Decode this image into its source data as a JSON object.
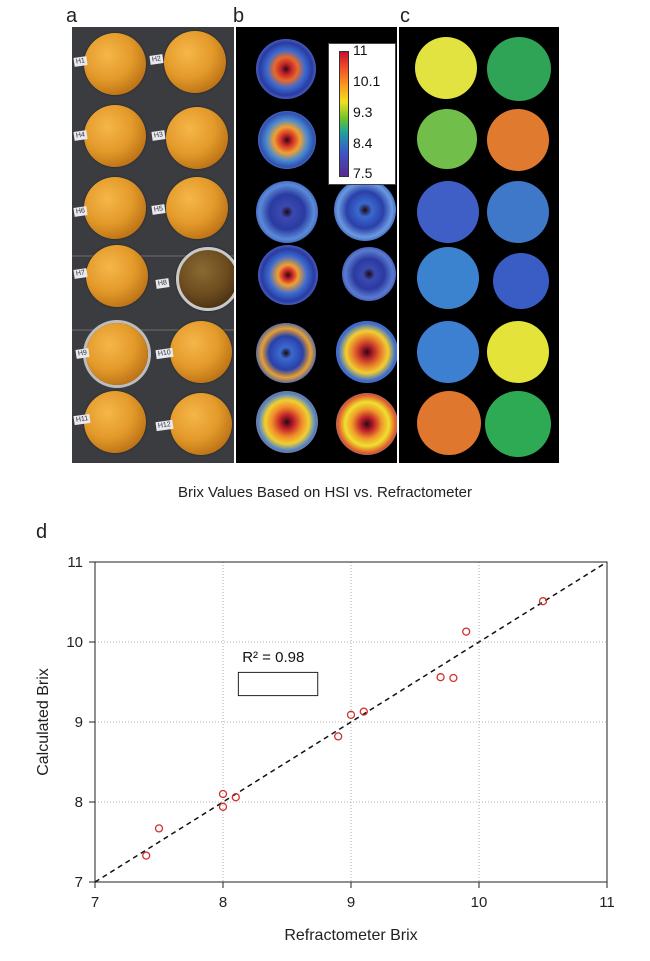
{
  "panels": {
    "a": {
      "letter": "a",
      "labels": [
        "H1",
        "H2",
        "H4",
        "H3",
        "H6",
        "H5",
        "H7",
        "H8",
        "H9",
        "H10",
        "H11",
        "H12"
      ]
    },
    "b": {
      "letter": "b"
    },
    "c": {
      "letter": "c"
    },
    "d": {
      "letter": "d"
    }
  },
  "colorbar": {
    "ticks": [
      "11",
      "10.1",
      "9.3",
      "8.4",
      "7.5"
    ]
  },
  "swatch_colors": [
    "#e2e340",
    "#2fa356",
    "#72be4b",
    "#e07a2e",
    "#3f5fc7",
    "#3f78c9",
    "#3b82cf",
    "#3a5cc5",
    "#3d7fd0",
    "#e3e33a",
    "#e0772f",
    "#2eaa55"
  ],
  "chart_data": {
    "type": "scatter",
    "title": "Brix Values Based on HSI vs. Refractometer",
    "xlabel": "Refractometer Brix",
    "ylabel": "Calculated Brix",
    "xlim": [
      7,
      11
    ],
    "ylim": [
      7,
      11
    ],
    "xticks": [
      "7",
      "8",
      "9",
      "10",
      "11"
    ],
    "yticks": [
      "7",
      "8",
      "9",
      "10",
      "11"
    ],
    "grid": true,
    "annotation": {
      "text": "R² = 0.98"
    },
    "fit_line": {
      "x": [
        7,
        11
      ],
      "y": [
        7,
        11
      ],
      "style": "dashed"
    },
    "points": [
      {
        "x": 7.4,
        "y": 7.33
      },
      {
        "x": 7.5,
        "y": 7.67
      },
      {
        "x": 8.0,
        "y": 7.94
      },
      {
        "x": 8.0,
        "y": 8.1
      },
      {
        "x": 8.1,
        "y": 8.06
      },
      {
        "x": 8.9,
        "y": 8.82
      },
      {
        "x": 9.0,
        "y": 9.09
      },
      {
        "x": 9.1,
        "y": 9.13
      },
      {
        "x": 9.7,
        "y": 9.56
      },
      {
        "x": 9.8,
        "y": 9.55
      },
      {
        "x": 9.9,
        "y": 10.13
      },
      {
        "x": 10.5,
        "y": 10.51
      }
    ],
    "marker_color": "#d0312d"
  }
}
